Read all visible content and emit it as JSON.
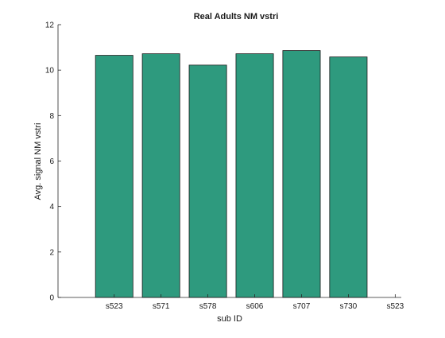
{
  "chart_data": {
    "type": "bar",
    "title": "Real Adults NM vstri",
    "xlabel": "sub ID",
    "ylabel": "Avg. signal NM vstri",
    "categories": [
      "s523",
      "s571",
      "s578",
      "s606",
      "s707",
      "s730"
    ],
    "x_tick_labels": [
      "s523",
      "s571",
      "s578",
      "s606",
      "s707",
      "s730",
      "s523"
    ],
    "values": [
      10.65,
      10.72,
      10.22,
      10.72,
      10.86,
      10.58
    ],
    "ylim": [
      0,
      12
    ],
    "y_ticks": [
      0,
      2,
      4,
      6,
      8,
      10,
      12
    ],
    "grid": false,
    "legend": "none",
    "bar_color": "#2e9a7e",
    "bar_edge_color": "#1a1a1a"
  }
}
